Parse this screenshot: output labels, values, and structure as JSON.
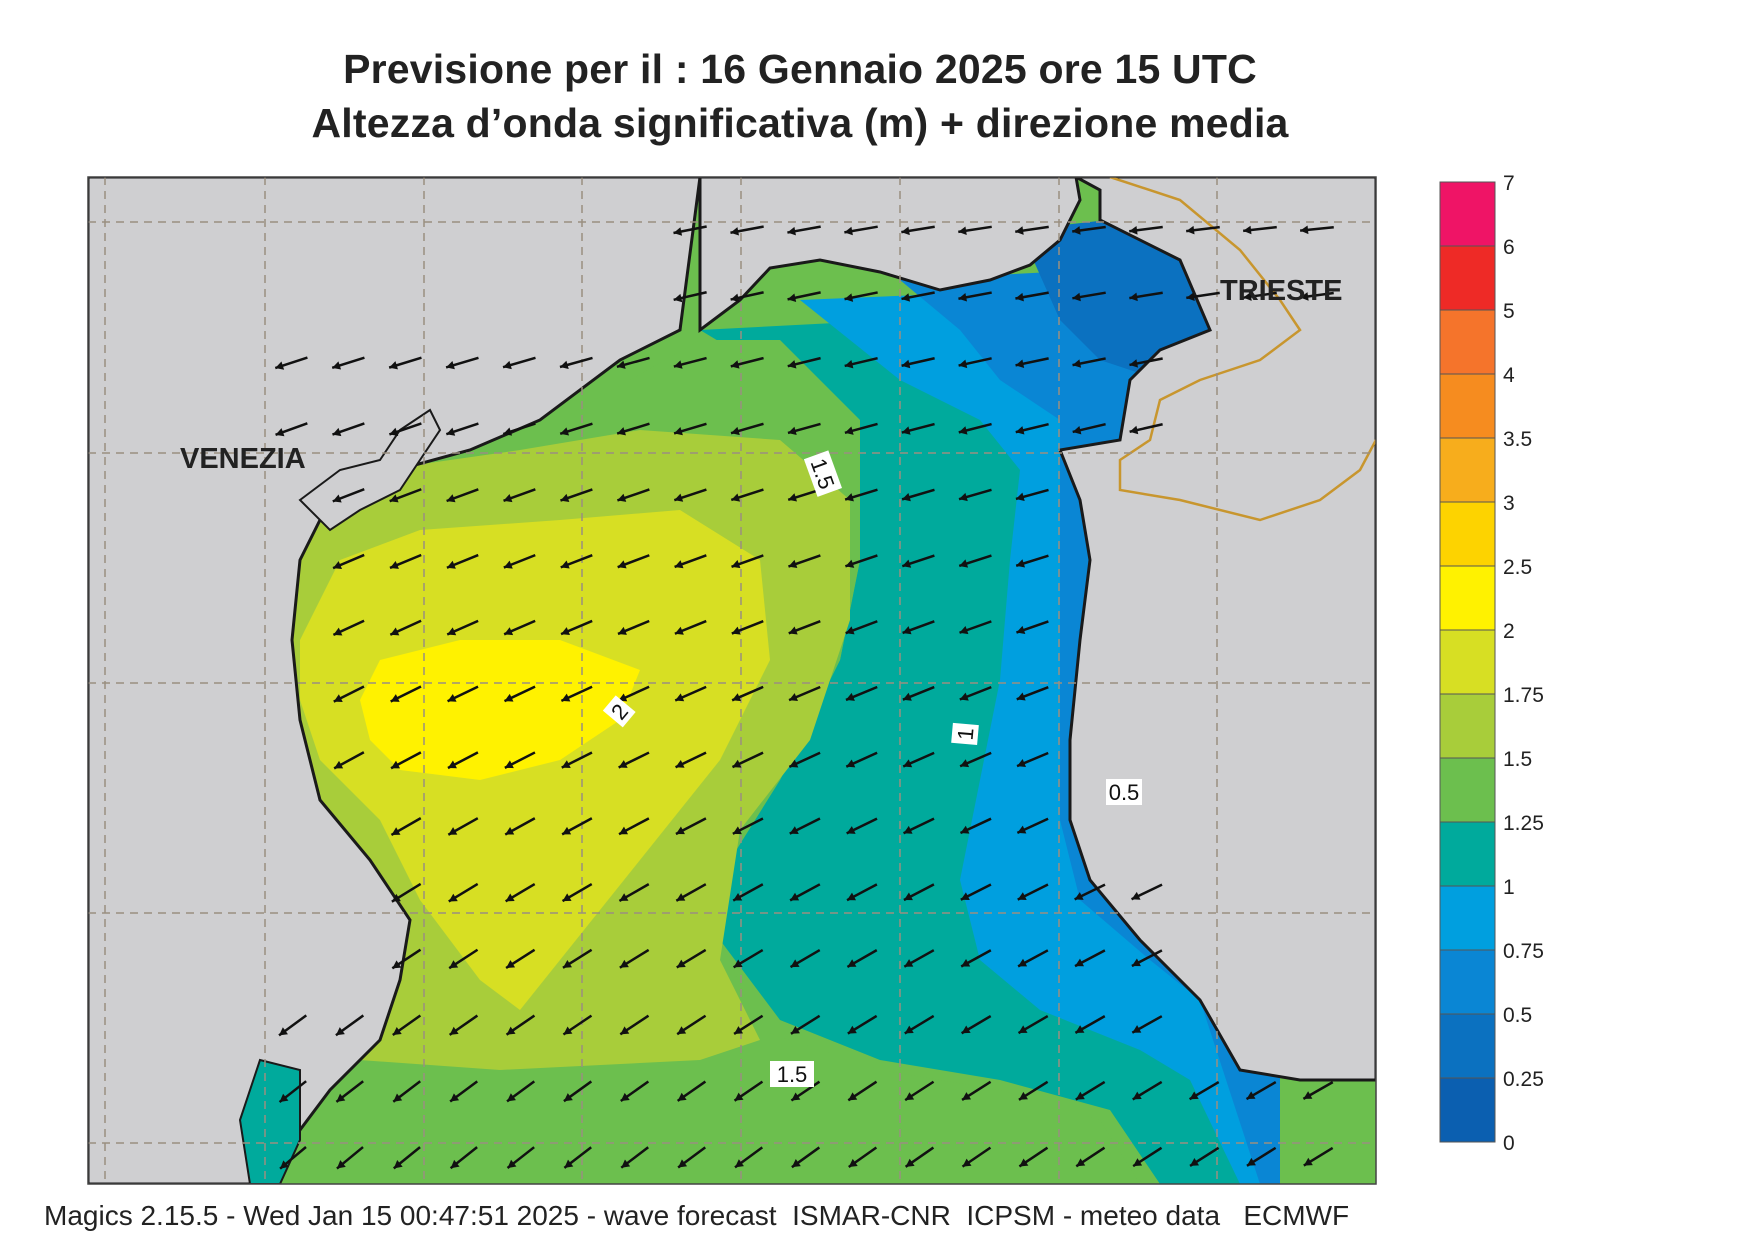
{
  "title": {
    "line1": "Previsione per il  :  16  Gennaio  2025   ore 15 UTC",
    "line2": "Altezza d’onda significativa (m) + direzione media"
  },
  "places": {
    "venezia": "VENEZIA",
    "trieste": "TRIESTE"
  },
  "contour_labels": [
    "1.5",
    "2",
    "1",
    "0.5",
    "1.5"
  ],
  "legend": {
    "ticks": [
      "7",
      "6",
      "5",
      "4",
      "3.5",
      "3",
      "2.5",
      "2",
      "1.75",
      "1.5",
      "1.25",
      "1",
      "0.75",
      "0.5",
      "0.25",
      "0"
    ],
    "colors": [
      "#ef1466",
      "#ee2a26",
      "#f5742b",
      "#f68c1f",
      "#f7ad1c",
      "#fdd300",
      "#fff200",
      "#d7df23",
      "#a8cd3a",
      "#6cbf4e",
      "#00aa9c",
      "#009fdf",
      "#0a86d4",
      "#0b71c0",
      "#0b5fb0"
    ]
  },
  "colors": {
    "land": "#cfcfd1",
    "coast": "#1a1a1a",
    "border": "#c8962e",
    "grid": "#9a8f80"
  },
  "footer": "Magics 2.15.5 - Wed Jan 15 00:47:51 2025 - wave forecast  ISMAR-CNR  ICPSM - meteo data   ECMWF"
}
